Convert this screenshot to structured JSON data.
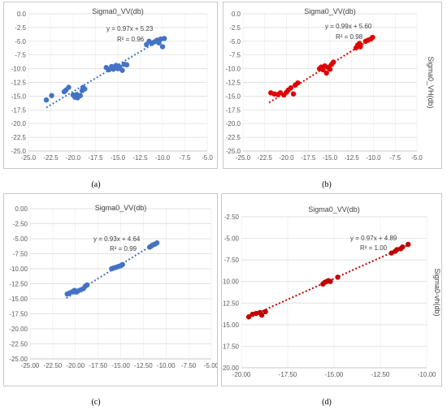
{
  "chart_data": [
    {
      "panel_label": "(a)",
      "type": "scatter",
      "title": "Sigma0_VV(db)",
      "xlabel": "",
      "ylabel": "",
      "xlim": [
        -25,
        -5
      ],
      "ylim": [
        -25,
        0
      ],
      "x_ticks": [
        -25,
        -22.5,
        -20,
        -17.5,
        -15,
        -12.5,
        -10,
        -7.5,
        -5
      ],
      "y_ticks": [
        0,
        -2.5,
        -5,
        -7.5,
        -10,
        -12.5,
        -15,
        -17.5,
        -20,
        -22.5,
        -25
      ],
      "tick_decimals": 1,
      "grid": true,
      "color": "#4472C4",
      "equation": "y = 0.97x + 5.23",
      "r2": "R² = 0.96",
      "trendline": {
        "slope": 0.97,
        "intercept": 5.23,
        "x_range": [
          -23,
          -10
        ]
      },
      "points": [
        [
          -23.0,
          -15.7
        ],
        [
          -22.4,
          -14.9
        ],
        [
          -21.0,
          -14.2
        ],
        [
          -20.8,
          -13.9
        ],
        [
          -20.5,
          -13.4
        ],
        [
          -20.0,
          -14.8
        ],
        [
          -19.8,
          -15.2
        ],
        [
          -19.6,
          -14.7
        ],
        [
          -19.5,
          -15.3
        ],
        [
          -19.2,
          -14.9
        ],
        [
          -19.0,
          -14.0
        ],
        [
          -18.9,
          -13.4
        ],
        [
          -18.7,
          -13.7
        ],
        [
          -16.3,
          -9.8
        ],
        [
          -16.0,
          -10.2
        ],
        [
          -15.7,
          -9.6
        ],
        [
          -15.5,
          -10.1
        ],
        [
          -15.2,
          -9.4
        ],
        [
          -15.0,
          -10.0
        ],
        [
          -14.8,
          -9.7
        ],
        [
          -14.5,
          -10.3
        ],
        [
          -14.3,
          -9.2
        ],
        [
          -14.0,
          -9.3
        ],
        [
          -11.8,
          -5.6
        ],
        [
          -11.5,
          -5.0
        ],
        [
          -11.2,
          -5.4
        ],
        [
          -10.9,
          -5.1
        ],
        [
          -10.6,
          -4.8
        ],
        [
          -10.4,
          -5.3
        ],
        [
          -10.2,
          -4.6
        ],
        [
          -10.0,
          -6.0
        ],
        [
          -9.8,
          -4.5
        ]
      ]
    },
    {
      "panel_label": "(b)",
      "type": "scatter",
      "title": "Sigma0_VV(db)",
      "xlabel": "",
      "ylabel": "Sigma0_VH(db)",
      "xlim": [
        -25,
        -5
      ],
      "ylim": [
        -25,
        0
      ],
      "x_ticks": [
        -25,
        -22.5,
        -20,
        -17.5,
        -15,
        -12.5,
        -10,
        -7.5,
        -5
      ],
      "y_ticks": [
        0,
        -2.5,
        -5,
        -7.5,
        -10,
        -12.5,
        -15,
        -17.5,
        -20,
        -22.5,
        -25
      ],
      "tick_decimals": 1,
      "grid": true,
      "color": "#E00000",
      "equation": "y = 0.99x + 5.60",
      "r2": "R² = 0.98",
      "trendline": {
        "slope": 0.99,
        "intercept": 5.6,
        "x_range": [
          -22,
          -10
        ]
      },
      "points": [
        [
          -21.8,
          -14.4
        ],
        [
          -21.4,
          -14.6
        ],
        [
          -21.0,
          -14.7
        ],
        [
          -20.7,
          -14.4
        ],
        [
          -20.3,
          -14.8
        ],
        [
          -20.0,
          -14.3
        ],
        [
          -19.8,
          -13.9
        ],
        [
          -19.5,
          -13.5
        ],
        [
          -19.2,
          -14.6
        ],
        [
          -19.0,
          -13.0
        ],
        [
          -18.7,
          -12.6
        ],
        [
          -16.2,
          -10.0
        ],
        [
          -16.0,
          -9.7
        ],
        [
          -15.8,
          -10.2
        ],
        [
          -15.6,
          -9.5
        ],
        [
          -15.4,
          -10.8
        ],
        [
          -15.2,
          -9.8
        ],
        [
          -15.0,
          -10.1
        ],
        [
          -14.8,
          -9.2
        ],
        [
          -14.6,
          -8.8
        ],
        [
          -12.0,
          -6.2
        ],
        [
          -11.8,
          -5.7
        ],
        [
          -11.6,
          -5.4
        ],
        [
          -11.5,
          -6.0
        ],
        [
          -10.9,
          -5.0
        ],
        [
          -10.6,
          -4.8
        ],
        [
          -10.3,
          -4.6
        ],
        [
          -10.1,
          -4.3
        ]
      ]
    },
    {
      "panel_label": "(c)",
      "type": "scatter",
      "title": "Sigma0_VV(db)",
      "xlabel": "",
      "ylabel": "",
      "xlim": [
        -25,
        -5
      ],
      "ylim": [
        -25,
        0
      ],
      "x_ticks": [
        -25,
        -22.5,
        -20,
        -17.5,
        -15,
        -12.5,
        -10,
        -7.5,
        -5
      ],
      "y_ticks": [
        0,
        -2.5,
        -5,
        -7.5,
        -10,
        -12.5,
        -15,
        -17.5,
        -20,
        -22.5,
        -25
      ],
      "tick_decimals": 2,
      "grid": true,
      "color": "#4472C4",
      "equation": "y = 0.93x + 4.64",
      "r2": "R² = 0.99",
      "trendline": {
        "slope": 0.93,
        "intercept": 4.64,
        "x_range": [
          -21,
          -11.2
        ]
      },
      "points": [
        [
          -20.9,
          -14.2
        ],
        [
          -20.6,
          -14.0
        ],
        [
          -20.3,
          -13.8
        ],
        [
          -20.1,
          -13.6
        ],
        [
          -19.9,
          -13.9
        ],
        [
          -19.7,
          -13.7
        ],
        [
          -19.4,
          -13.5
        ],
        [
          -19.1,
          -13.3
        ],
        [
          -18.9,
          -12.9
        ],
        [
          -18.7,
          -12.7
        ],
        [
          -16.0,
          -10.0
        ],
        [
          -15.8,
          -9.9
        ],
        [
          -15.6,
          -9.8
        ],
        [
          -15.4,
          -9.7
        ],
        [
          -15.2,
          -9.6
        ],
        [
          -15.0,
          -9.5
        ],
        [
          -14.8,
          -9.3
        ],
        [
          -11.8,
          -6.4
        ],
        [
          -11.6,
          -6.2
        ],
        [
          -11.4,
          -6.0
        ],
        [
          -11.2,
          -5.9
        ],
        [
          -11.0,
          -5.7
        ]
      ]
    },
    {
      "panel_label": "(d)",
      "type": "scatter",
      "title": "Sigma0_VV(db)",
      "xlabel": "",
      "ylabel": "Sigma0-vh(db)",
      "xlim": [
        -20,
        -10
      ],
      "ylim": [
        -20,
        -2.5
      ],
      "x_ticks": [
        -20,
        -17.5,
        -15,
        -12.5,
        -10
      ],
      "y_ticks": [
        -2.5,
        -5,
        -7.5,
        -10,
        -12.5,
        -15,
        -17.5,
        -20
      ],
      "tick_decimals": 2,
      "grid": true,
      "color": "#C00000",
      "equation": "y = 0.97x + 4.89",
      "r2": "R² = 1.00",
      "trendline": {
        "slope": 0.97,
        "intercept": 4.89,
        "x_range": [
          -19.6,
          -11
        ]
      },
      "points": [
        [
          -19.6,
          -14.1
        ],
        [
          -19.4,
          -13.8
        ],
        [
          -19.2,
          -13.7
        ],
        [
          -19.0,
          -13.6
        ],
        [
          -18.9,
          -13.9
        ],
        [
          -18.7,
          -13.5
        ],
        [
          -15.6,
          -10.3
        ],
        [
          -15.5,
          -10.1
        ],
        [
          -15.4,
          -10.0
        ],
        [
          -15.3,
          -9.9
        ],
        [
          -15.2,
          -10.0
        ],
        [
          -14.8,
          -9.5
        ],
        [
          -11.9,
          -6.7
        ],
        [
          -11.7,
          -6.5
        ],
        [
          -11.6,
          -6.3
        ],
        [
          -11.4,
          -6.2
        ],
        [
          -11.3,
          -6.0
        ],
        [
          -11.0,
          -5.7
        ]
      ]
    }
  ]
}
